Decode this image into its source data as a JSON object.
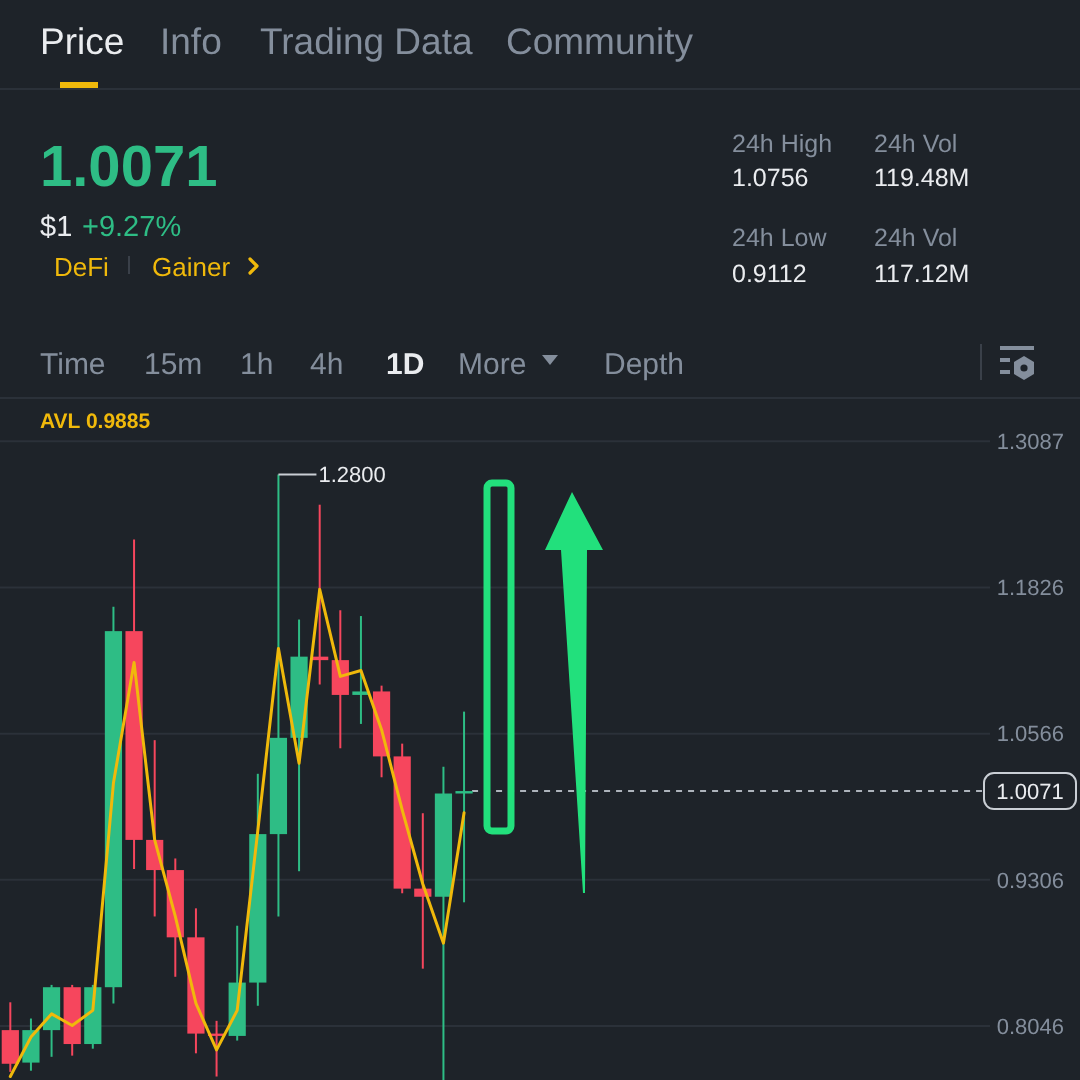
{
  "chart_data": [
    {
      "type": "other",
      "annotations": [
        "Price",
        "Info",
        "Trading Data",
        "Community",
        "1.0071",
        "$1",
        "+9.27%",
        "DeFi",
        "Gainer",
        "24h High",
        "1.0756",
        "24h Low",
        "0.9112",
        "24h Vol",
        "119.48M",
        "24h Vol",
        "117.12M",
        "Time",
        "15m",
        "1h",
        "4h",
        "1D",
        "More",
        "Depth"
      ]
    },
    {
      "type": "candlestick",
      "categories": [
        null,
        null,
        null,
        null,
        null,
        null,
        null,
        null,
        null,
        null,
        null,
        null,
        null,
        null,
        null,
        null,
        null,
        null,
        null,
        null,
        null,
        null,
        null,
        null,
        null,
        null,
        null,
        null,
        null,
        null,
        null,
        null,
        null,
        null,
        null,
        null,
        null,
        null,
        null,
        null,
        null,
        null,
        null,
        null,
        null,
        null,
        null,
        null
      ],
      "ohlc": [
        [
          0.801,
          0.825,
          0.765,
          0.772
        ],
        [
          0.773,
          0.811,
          0.766,
          0.801
        ],
        [
          0.801,
          0.84,
          0.778,
          0.838
        ],
        [
          0.838,
          0.84,
          0.779,
          0.789
        ],
        [
          0.789,
          0.84,
          0.785,
          0.838
        ],
        [
          0.838,
          1.166,
          0.824,
          1.145
        ],
        [
          1.145,
          1.224,
          0.94,
          0.965
        ],
        [
          0.965,
          1.051,
          0.899,
          0.939
        ],
        [
          0.939,
          0.949,
          0.847,
          0.881
        ],
        [
          0.881,
          0.906,
          0.781,
          0.798
        ],
        [
          0.798,
          0.809,
          0.761,
          0.796
        ],
        [
          0.796,
          0.891,
          0.792,
          0.842
        ],
        [
          0.842,
          1.022,
          0.822,
          0.97
        ],
        [
          0.97,
          1.28,
          0.899,
          1.053
        ],
        [
          1.053,
          1.155,
          0.938,
          1.123
        ],
        [
          1.123,
          1.254,
          1.099,
          1.12
        ],
        [
          1.12,
          1.163,
          1.044,
          1.09
        ],
        [
          1.09,
          1.158,
          1.065,
          1.093
        ],
        [
          1.093,
          1.098,
          1.019,
          1.037
        ],
        [
          1.037,
          1.048,
          0.919,
          0.923
        ],
        [
          0.923,
          0.988,
          0.854,
          0.916
        ],
        [
          0.916,
          1.028,
          0.758,
          1.005
        ],
        [
          1.005,
          1.0756,
          0.9112,
          1.0071
        ],
        null,
        null,
        null,
        null,
        null,
        null,
        null,
        null,
        null,
        null,
        null,
        null,
        null,
        null,
        null,
        null,
        null,
        null,
        null,
        null,
        null,
        null,
        null,
        null,
        null
      ],
      "series": [
        {
          "name": "AVL 0.9885",
          "type": "line",
          "color": "#f0b90b",
          "values": [
            0.761,
            0.795,
            0.815,
            0.805,
            0.818,
            1.014,
            1.118,
            0.965,
            0.899,
            0.824,
            0.784,
            0.818,
            0.973,
            1.13,
            1.031,
            1.181,
            1.106,
            1.111,
            1.06,
            0.991,
            0.927,
            0.876,
            0.9885,
            null,
            null,
            null,
            null,
            null,
            null,
            null,
            null,
            null,
            null,
            null,
            null,
            null,
            null,
            null,
            null,
            null,
            null,
            null,
            null,
            null,
            null,
            null,
            null,
            null
          ]
        }
      ],
      "ylim": [
        0.758,
        1.346
      ],
      "yticks": [
        1.3087,
        1.1826,
        1.0566,
        1.0071,
        0.9306,
        0.8046
      ],
      "grid": "y",
      "tick_labels": "y",
      "legend": "top left",
      "ref_lines": [
        {
          "axis": "y",
          "value": 1.0071,
          "line_style": "dashed"
        }
      ],
      "annotations": [
        "1.2800"
      ]
    }
  ]
}
